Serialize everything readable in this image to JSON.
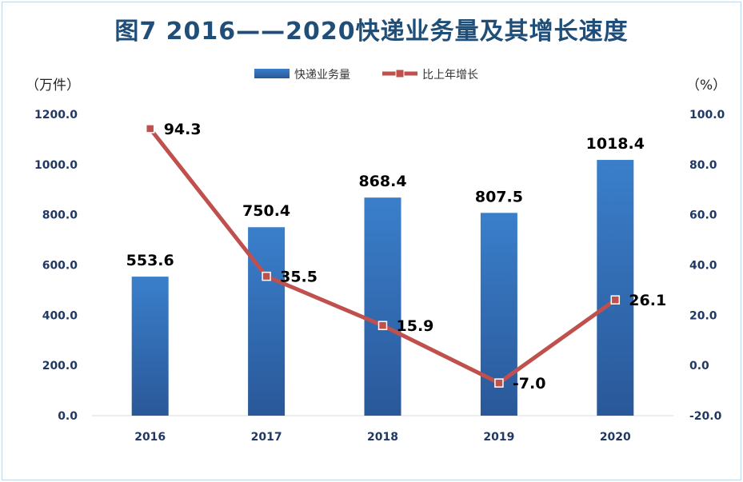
{
  "chart_data": {
    "type": "bar",
    "title": "图7  2016——2020快递业务量及其增长速度",
    "categories": [
      "2016",
      "2017",
      "2018",
      "2019",
      "2020"
    ],
    "series": [
      {
        "name": "快递业务量",
        "type": "bar",
        "axis": "left",
        "values": [
          553.6,
          750.4,
          868.4,
          807.5,
          1018.4
        ],
        "color": "#2e75b6"
      },
      {
        "name": "比上年增长",
        "type": "line",
        "axis": "right",
        "values": [
          94.3,
          35.5,
          15.9,
          -7.0,
          26.1
        ],
        "color": "#c0504d"
      }
    ],
    "y_left": {
      "label": "（万件）",
      "ylim": [
        0,
        1200
      ],
      "ticks": [
        "0.0",
        "200.0",
        "400.0",
        "600.0",
        "800.0",
        "1000.0",
        "1200.0"
      ]
    },
    "y_right": {
      "label": "（%）",
      "ylim": [
        -20,
        100
      ],
      "ticks": [
        "-20.0",
        "0.0",
        "20.0",
        "40.0",
        "60.0",
        "80.0",
        "100.0"
      ]
    },
    "bar_labels": [
      "553.6",
      "750.4",
      "868.4",
      "807.5",
      "1018.4"
    ],
    "line_labels": [
      "94.3",
      "35.5",
      "15.9",
      "-7.0",
      "26.1"
    ],
    "legend_position": "top",
    "grid": false
  }
}
